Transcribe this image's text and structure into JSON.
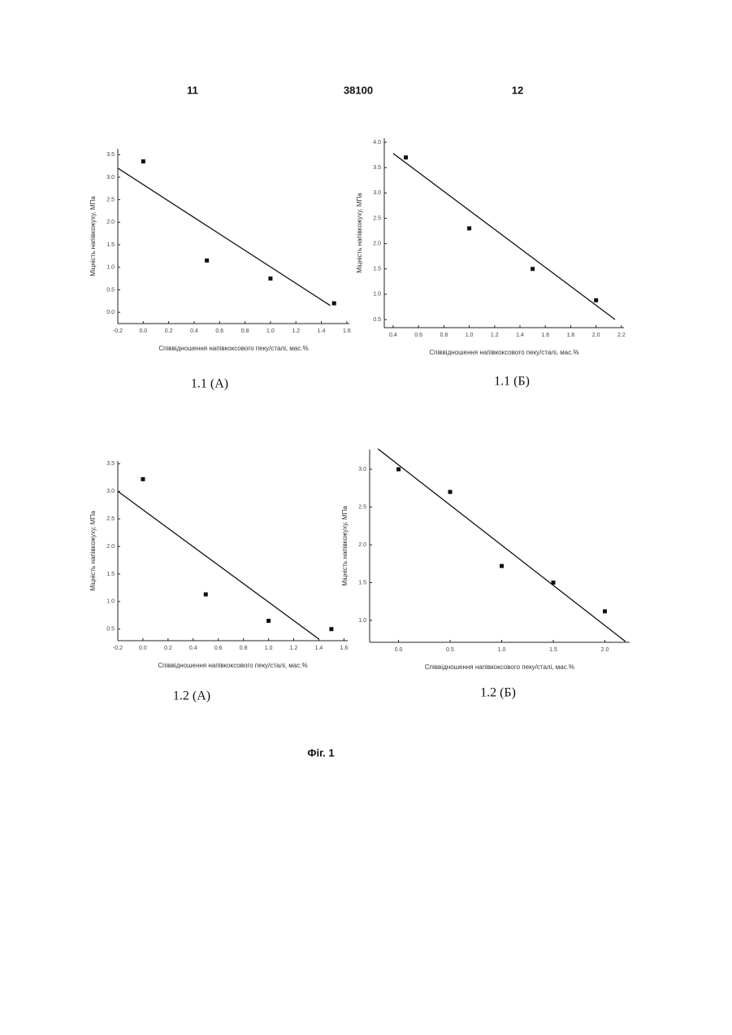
{
  "header": {
    "left_page": "11",
    "patent_number": "38100",
    "right_page": "12"
  },
  "figure_label": "Фіг. 1",
  "chart_data": [
    {
      "type": "scatter",
      "title": "1.1 (А)",
      "x_label": "Співвідношення напівкоксового пеку/сталі, мас.%",
      "y_label": "Міцність напівкожуху, МПа",
      "x": [
        0,
        0.5,
        1,
        1.5
      ],
      "values": [
        3.35,
        1.15,
        0.75,
        0.2
      ],
      "color": "#111111",
      "fit": {
        "x": [
          -0.2,
          1.47
        ],
        "values": [
          3.2,
          0.15
        ]
      },
      "xlim": [
        -0.2,
        1.62
      ],
      "ylim": [
        -0.25,
        3.63
      ],
      "xticks": [
        -0.2,
        {
          "value": 0,
          "label": "0.0"
        },
        0.2,
        0.4,
        0.6,
        0.8,
        {
          "value": 1,
          "label": "1.0"
        },
        1.2,
        1.4,
        1.6
      ],
      "yticks": [
        {
          "value": 0,
          "label": "0.0"
        },
        0.5,
        {
          "value": 1,
          "label": "1.0"
        },
        1.5,
        {
          "value": 2,
          "label": "2.0"
        },
        2.5,
        {
          "value": 3,
          "label": "3.0"
        },
        3.5
      ]
    },
    {
      "type": "scatter",
      "title": "1.1 (Б)",
      "x_label": "Співвідношення напівкоксового пеку/сталі, мас.%",
      "y_label": "Міцність напівкожуху, МПа",
      "x": [
        0.5,
        1,
        1.5,
        2
      ],
      "values": [
        3.7,
        2.3,
        1.5,
        0.88
      ],
      "color": "#111111",
      "fit": {
        "x": [
          0.4,
          2.15
        ],
        "values": [
          3.78,
          0.5
        ]
      },
      "xlim": [
        0.33,
        2.22
      ],
      "ylim": [
        0.34,
        4.08
      ],
      "xticks": [
        0.4,
        0.6,
        0.8,
        {
          "value": 1,
          "label": "1.0"
        },
        1.2,
        1.4,
        1.6,
        1.8,
        {
          "value": 2,
          "label": "2.0"
        },
        2.2
      ],
      "yticks": [
        0.5,
        {
          "value": 1,
          "label": "1.0"
        },
        1.5,
        {
          "value": 2,
          "label": "2.0"
        },
        2.5,
        {
          "value": 3,
          "label": "3.0"
        },
        3.5,
        {
          "value": 4,
          "label": "4.0"
        }
      ]
    },
    {
      "type": "scatter",
      "title": "1.2 (А)",
      "x_label": "Співвідношення напівкоксового пеку/сталі, мас.%",
      "y_label": "Міцність напівкожуху, МПа",
      "x": [
        0,
        0.5,
        1,
        1.5
      ],
      "values": [
        3.22,
        1.13,
        0.65,
        0.5
      ],
      "color": "#111111",
      "fit": {
        "x": [
          -0.2,
          1.4
        ],
        "values": [
          3.0,
          0.32
        ]
      },
      "xlim": [
        -0.2,
        1.63
      ],
      "ylim": [
        0.29,
        3.55
      ],
      "xticks": [
        -0.2,
        {
          "value": 0,
          "label": "0.0"
        },
        0.2,
        0.4,
        0.6,
        0.8,
        {
          "value": 1,
          "label": "1.0"
        },
        1.2,
        1.4,
        1.6
      ],
      "yticks": [
        0.5,
        {
          "value": 1,
          "label": "1.0"
        },
        1.5,
        {
          "value": 2,
          "label": "2.0"
        },
        2.5,
        {
          "value": 3,
          "label": "3.0"
        },
        3.5
      ]
    },
    {
      "type": "scatter",
      "title": "1.2 (Б)",
      "x_label": "Співвідношення напівкоксового пеку/сталі, мас.%",
      "y_label": "Міцність напівкожуху, МПа",
      "x": [
        0,
        0.5,
        1,
        1.5,
        2
      ],
      "values": [
        3.0,
        2.7,
        1.72,
        1.5,
        1.12
      ],
      "color": "#111111",
      "fit": {
        "x": [
          -0.2,
          2.2
        ],
        "values": [
          3.27,
          0.72
        ]
      },
      "xlim": [
        -0.28,
        2.24
      ],
      "ylim": [
        0.71,
        3.26
      ],
      "xticks": [
        {
          "value": 0,
          "label": "0.0"
        },
        0.5,
        {
          "value": 1,
          "label": "1.0"
        },
        1.5,
        {
          "value": 2,
          "label": "2.0"
        }
      ],
      "yticks": [
        {
          "value": 1,
          "label": "1.0"
        },
        1.5,
        {
          "value": 2,
          "label": "2.0"
        },
        2.5,
        {
          "value": 3,
          "label": "3.0"
        }
      ]
    }
  ]
}
